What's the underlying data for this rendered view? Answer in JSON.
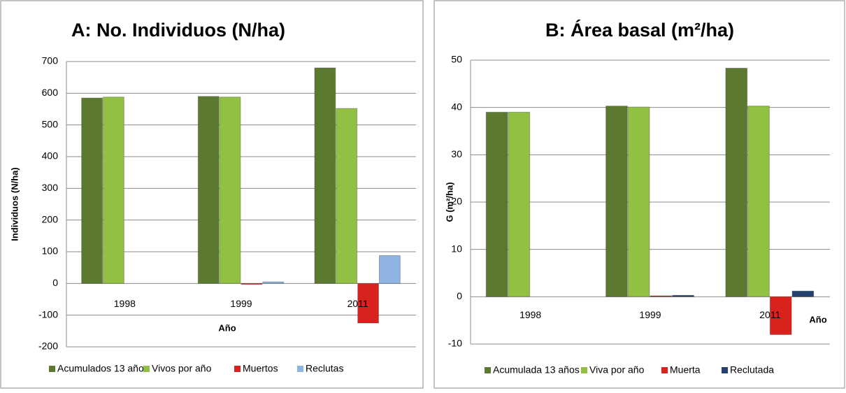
{
  "chart_data": [
    {
      "type": "bar",
      "title": "A: No. Individuos (N/ha)",
      "y_label": "Individuos (N/ha)",
      "x_label": "Año",
      "categories": [
        "1998",
        "1999",
        "2011"
      ],
      "series": [
        {
          "name": "Acumulados 13 años",
          "color": "#5b7a2f",
          "values": [
            585,
            590,
            680
          ]
        },
        {
          "name": "Vivos por año",
          "color": "#92c043",
          "values": [
            588,
            588,
            552
          ]
        },
        {
          "name": "Muertos",
          "color": "#d9211e",
          "values": [
            null,
            -3,
            -125
          ]
        },
        {
          "name": "Reclutas",
          "color": "#8fb4e3",
          "values": [
            null,
            5,
            88
          ]
        }
      ],
      "ylim": [
        -200,
        700
      ],
      "yticks": [
        -200,
        -100,
        0,
        100,
        200,
        300,
        400,
        500,
        600,
        700
      ],
      "grid": true,
      "legend": "bottom"
    },
    {
      "type": "bar",
      "title": "B: Área basal (m²/ha)",
      "y_label": "G (m²/ha)",
      "x_label": "Año",
      "categories": [
        "1998",
        "1999",
        "2011"
      ],
      "series": [
        {
          "name": "Acumulada 13 años",
          "color": "#5b7a2f",
          "values": [
            39,
            40.3,
            48.3
          ]
        },
        {
          "name": "Viva por año",
          "color": "#92c043",
          "values": [
            39,
            40.1,
            40.3
          ]
        },
        {
          "name": "Muerta",
          "color": "#d9211e",
          "values": [
            null,
            0.2,
            -8
          ]
        },
        {
          "name": "Reclutada",
          "color": "#23406e",
          "values": [
            null,
            0.3,
            1.2
          ]
        }
      ],
      "ylim": [
        -10,
        50
      ],
      "yticks": [
        -10,
        0,
        10,
        20,
        30,
        40,
        50
      ],
      "grid": true,
      "legend": "bottom"
    }
  ]
}
